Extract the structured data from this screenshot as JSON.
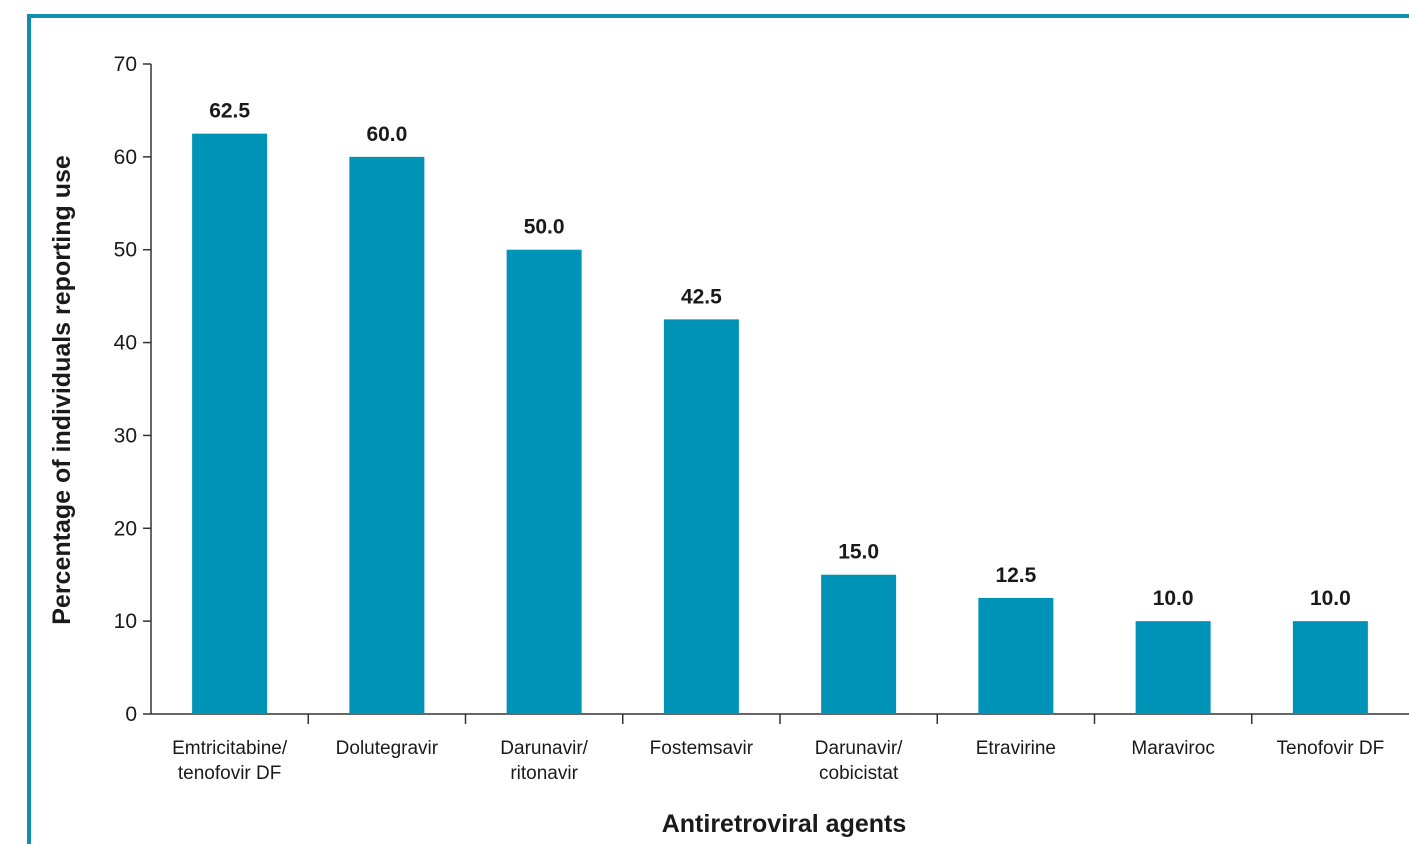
{
  "chart_data": {
    "type": "bar",
    "title": "",
    "xlabel": "Antiretroviral agents",
    "ylabel": "Percentage of individuals reporting use",
    "ylim": [
      0,
      70
    ],
    "yticks": [
      0,
      10,
      20,
      30,
      40,
      50,
      60,
      70
    ],
    "categories": [
      [
        "Emtricitabine/",
        "tenofovir DF"
      ],
      [
        "Dolutegravir"
      ],
      [
        "Darunavir/",
        "ritonavir"
      ],
      [
        "Fostemsavir"
      ],
      [
        "Darunavir/",
        "cobicistat"
      ],
      [
        "Etravirine"
      ],
      [
        "Maraviroc"
      ],
      [
        "Tenofovir DF"
      ]
    ],
    "values": [
      62.5,
      60.0,
      50.0,
      42.5,
      15.0,
      12.5,
      10.0,
      10.0
    ],
    "data_labels": [
      "62.5",
      "60.0",
      "50.0",
      "42.5",
      "15.0",
      "12.5",
      "10.0",
      "10.0"
    ],
    "bar_color": "#0093b8",
    "frame_color": "#0e8fb2",
    "grid": false,
    "legend": "none"
  }
}
